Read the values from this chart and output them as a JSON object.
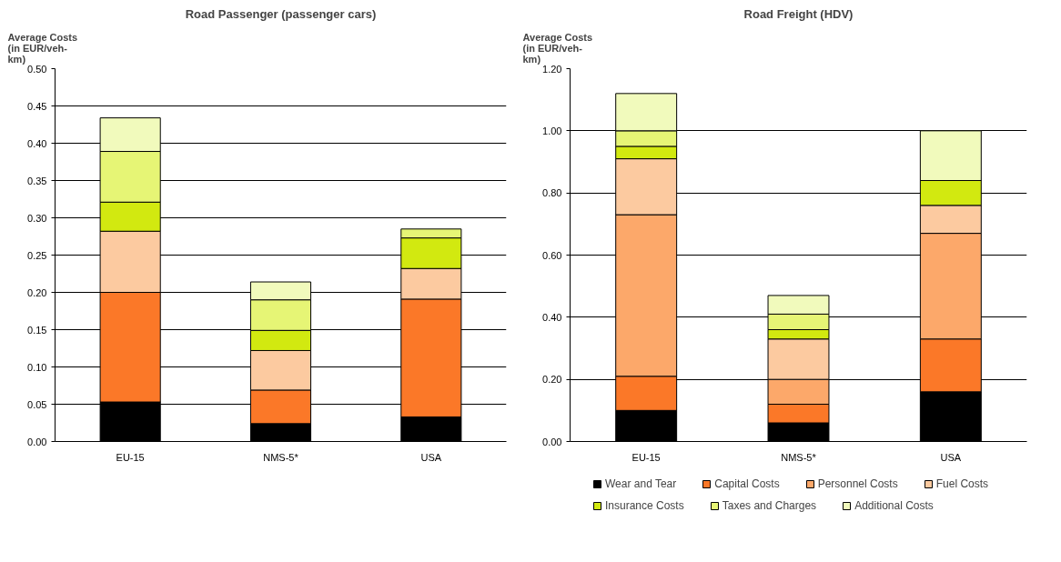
{
  "chart_data": [
    {
      "type": "bar",
      "title": "Road Passenger (passenger cars)",
      "ylabel": "Average Costs (in EUR/veh-km)",
      "stacked": true,
      "categories": [
        "EU-15",
        "NMS-5*",
        "USA"
      ],
      "ylim": [
        0,
        0.5
      ],
      "yticks": [
        {
          "value": 0,
          "label": "0.00"
        },
        {
          "value": 0.05,
          "label": "0.05"
        },
        {
          "value": 0.1,
          "label": "0.10"
        },
        {
          "value": 0.15,
          "label": "0.15"
        },
        {
          "value": 0.2,
          "label": "0.20"
        },
        {
          "value": 0.25,
          "label": "0.25"
        },
        {
          "value": 0.3,
          "label": "0.30"
        },
        {
          "value": 0.35,
          "label": "0.35"
        },
        {
          "value": 0.4,
          "label": "0.40"
        },
        {
          "value": 0.45,
          "label": "0.45"
        },
        {
          "value": 0.5,
          "label": "0.50"
        }
      ],
      "grid": "y",
      "series": [
        {
          "color": "#000000",
          "values": [
            0.053,
            0.024,
            0.033
          ]
        },
        {
          "color": "#fb7828",
          "values": [
            0.147,
            0.045,
            0.158
          ]
        },
        {
          "color": "#fccaa0",
          "values": [
            0.082,
            0.053,
            0.041
          ]
        },
        {
          "color": "#d2e910",
          "values": [
            0.039,
            0.027,
            0.041
          ]
        },
        {
          "color": "#e6f575",
          "values": [
            0.068,
            0.041,
            0.012
          ]
        },
        {
          "color": "#f1fabc",
          "values": [
            0.045,
            0.024,
            null
          ]
        }
      ]
    },
    {
      "type": "bar",
      "title": "Road Freight (HDV)",
      "ylabel": "Average Costs (in EUR/veh-km)",
      "stacked": true,
      "categories": [
        "EU-15",
        "NMS-5*",
        "USA"
      ],
      "ylim": [
        0,
        1.2
      ],
      "yticks": [
        {
          "value": 0,
          "label": "0.00"
        },
        {
          "value": 0.2,
          "label": "0.20"
        },
        {
          "value": 0.4,
          "label": "0.40"
        },
        {
          "value": 0.6,
          "label": "0.60"
        },
        {
          "value": 0.8,
          "label": "0.80"
        },
        {
          "value": 1.0,
          "label": "1.00"
        },
        {
          "value": 1.2,
          "label": "1.20"
        }
      ],
      "grid": "y",
      "legend": "bottom",
      "series": [
        {
          "name": "Wear and Tear",
          "color": "#000000",
          "values": [
            0.1,
            0.06,
            0.16
          ]
        },
        {
          "name": "Capital Costs",
          "color": "#fb7828",
          "values": [
            0.11,
            0.06,
            0.17
          ]
        },
        {
          "name": "Personnel Costs",
          "color": "#fca86a",
          "values": [
            0.52,
            0.08,
            0.34
          ]
        },
        {
          "name": "Fuel Costs",
          "color": "#fccaa0",
          "values": [
            0.18,
            0.13,
            0.09
          ]
        },
        {
          "name": "Insurance Costs",
          "color": "#d2e910",
          "values": [
            0.04,
            0.03,
            0.08
          ]
        },
        {
          "name": "Taxes and Charges",
          "color": "#e6f575",
          "values": [
            0.05,
            0.05,
            0.0
          ]
        },
        {
          "name": "Additional Costs",
          "color": "#f1fabc",
          "values": [
            0.12,
            0.06,
            0.16
          ]
        }
      ]
    }
  ]
}
